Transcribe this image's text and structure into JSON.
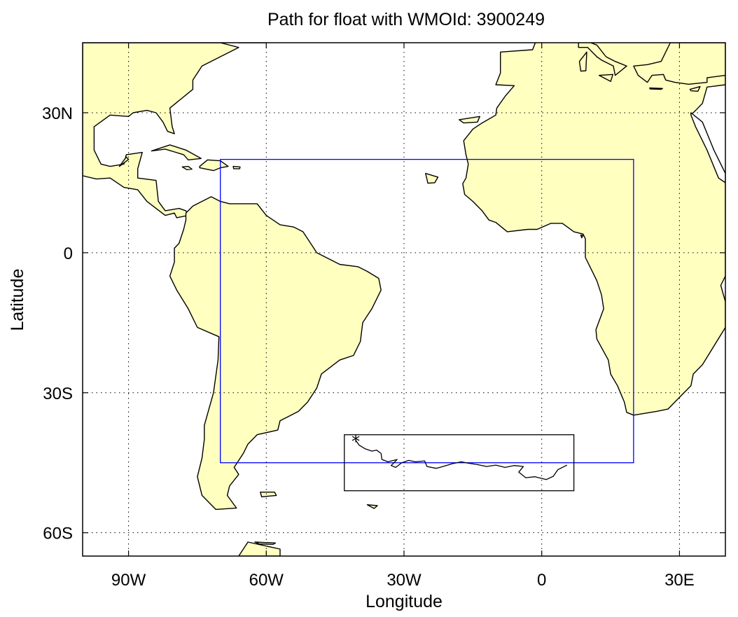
{
  "title": "Path for float with WMOId: 3900249",
  "xlabel": "Longitude",
  "ylabel": "Latitude",
  "map": {
    "lon_range": [
      -100,
      40
    ],
    "lat_range": [
      -65,
      45
    ],
    "land_color": "#ffffc0",
    "coast_color": "#000000",
    "grid": "dotted",
    "x_ticks": [
      {
        "value": -90,
        "label": "90W"
      },
      {
        "value": -60,
        "label": "60W"
      },
      {
        "value": -30,
        "label": "30W"
      },
      {
        "value": 0,
        "label": "0"
      },
      {
        "value": 30,
        "label": "30E"
      }
    ],
    "y_ticks": [
      {
        "value": 30,
        "label": "30N"
      },
      {
        "value": 0,
        "label": "0"
      },
      {
        "value": -30,
        "label": "30S"
      },
      {
        "value": -60,
        "label": "60S"
      }
    ],
    "region_box": {
      "color": "#0000ff",
      "lon": [
        -70,
        20
      ],
      "lat": [
        -45,
        20
      ]
    },
    "path_box": {
      "color": "#000000",
      "lon": [
        -43,
        7
      ],
      "lat": [
        -51,
        -39
      ]
    },
    "float_path": {
      "start_marker": "*",
      "points": [
        [
          -40.5,
          -40.2
        ],
        [
          -39.8,
          -41.2
        ],
        [
          -38.5,
          -42
        ],
        [
          -37,
          -42.5
        ],
        [
          -36,
          -42.3
        ],
        [
          -35,
          -43
        ],
        [
          -34.8,
          -44.3
        ],
        [
          -33.5,
          -44.8
        ],
        [
          -31.5,
          -44.3
        ],
        [
          -32,
          -44.8
        ],
        [
          -32.8,
          -45.6
        ],
        [
          -31.8,
          -46
        ],
        [
          -30.5,
          -45
        ],
        [
          -29,
          -44.5
        ],
        [
          -27.5,
          -44.8
        ],
        [
          -25.5,
          -44.6
        ],
        [
          -25,
          -45.8
        ],
        [
          -23,
          -46.2
        ],
        [
          -21.5,
          -45.8
        ],
        [
          -19.5,
          -45.2
        ],
        [
          -17.5,
          -44.8
        ],
        [
          -16,
          -45.1
        ],
        [
          -14,
          -45.4
        ],
        [
          -12,
          -45.8
        ],
        [
          -10,
          -45.5
        ],
        [
          -8,
          -46
        ],
        [
          -6,
          -45.6
        ],
        [
          -4,
          -45.8
        ],
        [
          -5,
          -47
        ],
        [
          -3.5,
          -48.2
        ],
        [
          -1.5,
          -48
        ],
        [
          1,
          -48.6
        ],
        [
          2.5,
          -47.9
        ],
        [
          3.5,
          -46.5
        ],
        [
          5.5,
          -45.5
        ]
      ]
    }
  }
}
